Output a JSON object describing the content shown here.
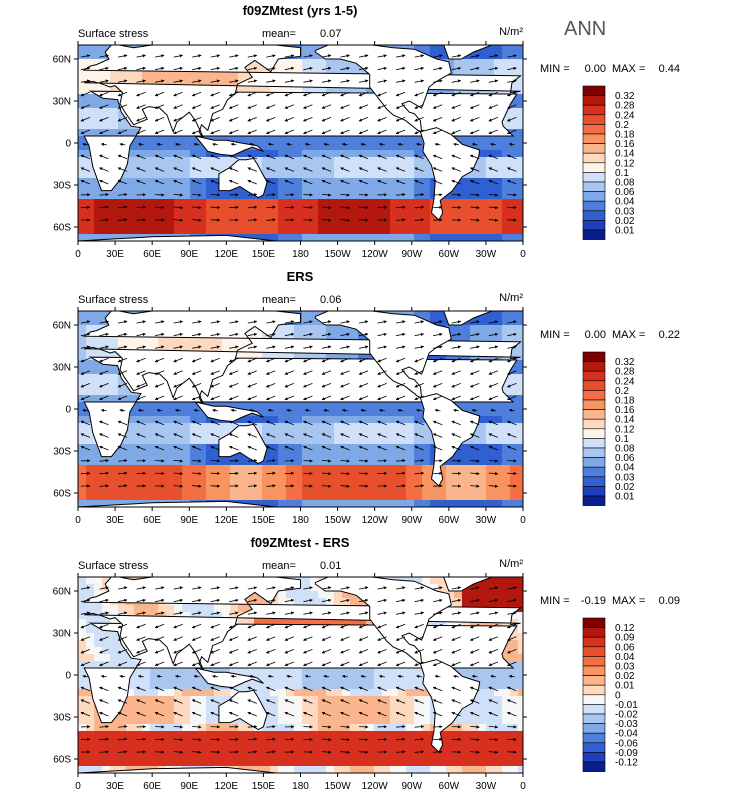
{
  "figure_title": "ANN",
  "panels": [
    {
      "title": "f09ZMtest (yrs 1-5)",
      "variable": "Surface stress",
      "mean_label": "mean=",
      "mean": "0.07",
      "units": "N/m²",
      "min_label": "MIN =",
      "min": "0.00",
      "max_label": "MAX =",
      "max": "0.44",
      "colorbar": {
        "labels": [
          "0.32",
          "0.28",
          "0.24",
          "0.2",
          "0.18",
          "0.16",
          "0.14",
          "0.12",
          "0.1",
          "0.08",
          "0.06",
          "0.04",
          "0.03",
          "0.02",
          "0.01"
        ],
        "colors": [
          "#7f0000",
          "#b2180e",
          "#d7301f",
          "#e8502d",
          "#f46d43",
          "#f7945f",
          "#fbb58d",
          "#fdd9bf",
          "#fff4ea",
          "#cfe0f8",
          "#a8c6f0",
          "#7fa8e6",
          "#4f7fdc",
          "#2f5fd0",
          "#1e3fbe",
          "#0a1f8f"
        ]
      },
      "style": "model"
    },
    {
      "title": "ERS",
      "variable": "Surface stress",
      "mean_label": "mean=",
      "mean": "0.06",
      "units": "N/m²",
      "min_label": "MIN =",
      "min": "0.00",
      "max_label": "MAX =",
      "max": "0.22",
      "colorbar": {
        "labels": [
          "0.32",
          "0.28",
          "0.24",
          "0.2",
          "0.18",
          "0.16",
          "0.14",
          "0.12",
          "0.1",
          "0.08",
          "0.06",
          "0.04",
          "0.03",
          "0.02",
          "0.01"
        ],
        "colors": [
          "#7f0000",
          "#b2180e",
          "#d7301f",
          "#e8502d",
          "#f46d43",
          "#f7945f",
          "#fbb58d",
          "#fdd9bf",
          "#fff4ea",
          "#cfe0f8",
          "#a8c6f0",
          "#7fa8e6",
          "#4f7fdc",
          "#2f5fd0",
          "#1e3fbe",
          "#0a1f8f"
        ]
      },
      "style": "obs"
    },
    {
      "title": "f09ZMtest - ERS",
      "variable": "Surface stress",
      "mean_label": "mean=",
      "mean": "0.01",
      "units": "N/m²",
      "min_label": "MIN =",
      "min": "-0.19",
      "max_label": "MAX =",
      "max": "0.09",
      "colorbar": {
        "labels": [
          "0.12",
          "0.09",
          "0.06",
          "0.04",
          "0.03",
          "0.02",
          "0.01",
          "0",
          "-0.01",
          "-0.02",
          "-0.03",
          "-0.04",
          "-0.06",
          "-0.09",
          "-0.12"
        ],
        "colors": [
          "#7f0000",
          "#b2180e",
          "#d7301f",
          "#e8502d",
          "#f46d43",
          "#f7945f",
          "#fbb58d",
          "#fdd9bf",
          "#f7f7f7",
          "#cfe0f8",
          "#a8c6f0",
          "#7fa8e6",
          "#4f7fdc",
          "#2f5fd0",
          "#1e3fbe",
          "#0a1f8f"
        ]
      },
      "style": "diff"
    }
  ],
  "lat_labels": [
    "60N",
    "30N",
    "0",
    "30S",
    "60S"
  ],
  "lon_labels": [
    "0",
    "30E",
    "60E",
    "90E",
    "120E",
    "150E",
    "180",
    "150W",
    "120W",
    "90W",
    "60W",
    "30W",
    "0"
  ]
}
